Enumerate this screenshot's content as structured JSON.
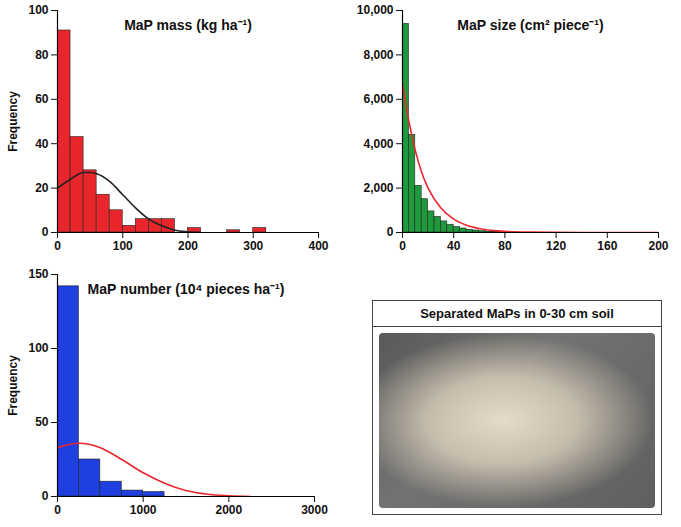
{
  "chart_data": [
    {
      "type": "histogram",
      "title": "MaP mass (kg ha⁻¹)",
      "y_label": "Frequency",
      "color": "#e8262b",
      "bins": [
        0,
        20,
        40,
        60,
        80,
        100,
        120,
        140,
        160,
        180,
        200,
        220,
        240,
        260,
        280,
        300,
        320
      ],
      "counts": [
        91,
        43,
        28,
        17,
        10,
        3,
        6,
        6,
        6,
        0,
        2,
        0,
        0,
        1,
        0,
        2
      ],
      "xlim": [
        0,
        400
      ],
      "xticks": [
        0,
        100,
        200,
        300,
        400
      ],
      "ylim": [
        0,
        100
      ],
      "yticks": [
        0,
        20,
        40,
        60,
        80,
        100
      ],
      "curve": {
        "color": "#222222",
        "x": [
          0,
          20,
          40,
          50,
          60,
          80,
          100,
          120,
          140,
          160,
          180,
          200,
          220
        ],
        "values": [
          20,
          24,
          27,
          27,
          26.5,
          23,
          17,
          11,
          6,
          3,
          1,
          0.3,
          0
        ]
      }
    },
    {
      "type": "histogram",
      "title": "MaP size (cm² piece⁻¹)",
      "color": "#1e9a3c",
      "bins": [
        0,
        5,
        10,
        15,
        20,
        25,
        30,
        35,
        40,
        45,
        50,
        55,
        60,
        65,
        70,
        75,
        80
      ],
      "counts": [
        9400,
        4400,
        2100,
        1500,
        950,
        700,
        500,
        350,
        250,
        180,
        120,
        90,
        60,
        40,
        30,
        20
      ],
      "xlim": [
        0,
        200
      ],
      "xticks": [
        0,
        40,
        80,
        120,
        160,
        200
      ],
      "ylim": [
        0,
        10000
      ],
      "yticks": [
        0,
        {
          "value": 2000,
          "label": "2,000"
        },
        {
          "value": 4000,
          "label": "4,000"
        },
        {
          "value": 6000,
          "label": "6,000"
        },
        {
          "value": 8000,
          "label": "8,000"
        },
        {
          "value": 10000,
          "label": "10,000"
        }
      ],
      "curve": {
        "color": "#e8262b",
        "x": [
          0,
          5,
          10,
          15,
          20,
          30,
          40,
          50,
          60,
          80,
          100,
          120,
          160,
          200
        ],
        "values": [
          6700,
          5000,
          3700,
          2700,
          2000,
          1100,
          600,
          330,
          180,
          50,
          15,
          5,
          0,
          0
        ]
      }
    },
    {
      "type": "histogram",
      "title": "MaP number (10⁴ pieces ha⁻¹)",
      "y_label": "Frequency",
      "color": "#1f3fe0",
      "bins": [
        0,
        250,
        500,
        750,
        1000,
        1250
      ],
      "counts": [
        142,
        25,
        10,
        4,
        3
      ],
      "xlim": [
        0,
        3000
      ],
      "xticks": [
        0,
        1000,
        2000,
        3000
      ],
      "ylim": [
        0,
        150
      ],
      "yticks": [
        0,
        50,
        100,
        150
      ],
      "curve": {
        "color": "#e8262b",
        "x": [
          0,
          250,
          500,
          750,
          1000,
          1250,
          1500,
          1750,
          2000,
          2250
        ],
        "values": [
          33,
          36,
          33,
          25,
          16,
          9,
          4,
          1.5,
          0.5,
          0
        ]
      }
    }
  ],
  "photo": {
    "title": "Separated MaPs in 0-30 cm soil"
  }
}
